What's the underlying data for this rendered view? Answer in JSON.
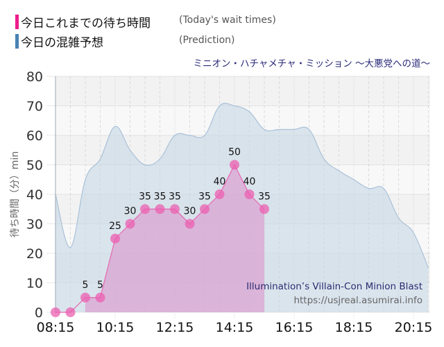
{
  "legend": {
    "items": [
      {
        "label_jp": "今日これまでの待ち時間",
        "label_en": "(Today's wait times)",
        "color": "#ec1c8c"
      },
      {
        "label_jp": "今日の混雑予想",
        "label_en": "(Prediction)",
        "color": "#4a82b4"
      }
    ]
  },
  "subtitle": "ミニオン・ハチャメチャ・ミッション ～大悪党への道～",
  "watermark": {
    "title": "Illumination’s Villain-Con Minion Blast",
    "url": "https://usjreal.asumirai.info"
  },
  "chart_data": {
    "type": "area",
    "title": "ミニオン・ハチャメチャ・ミッション ～大悪党への道～",
    "xlabel": "",
    "ylabel": "待ち時間（分）min",
    "ylim": [
      0,
      80
    ],
    "yticks": [
      0,
      10,
      20,
      30,
      40,
      50,
      60,
      70,
      80
    ],
    "xtick_labels": [
      "08:15",
      "10:15",
      "12:15",
      "14:15",
      "16:15",
      "18:15",
      "20:15"
    ],
    "grid": true,
    "legend_position": "top-left",
    "x": [
      "08:15",
      "08:45",
      "09:15",
      "09:45",
      "10:15",
      "10:45",
      "11:15",
      "11:45",
      "12:15",
      "12:45",
      "13:15",
      "13:45",
      "14:15",
      "14:45",
      "15:15",
      "15:45",
      "16:15",
      "16:45",
      "17:15",
      "17:45",
      "18:15",
      "18:45",
      "19:15",
      "19:45",
      "20:15",
      "20:45"
    ],
    "series": [
      {
        "name": "今日これまでの待ち時間 (Today's wait times)",
        "color": "#ec1c8c",
        "values": [
          0,
          0,
          5,
          5,
          25,
          30,
          35,
          35,
          35,
          30,
          35,
          40,
          50,
          40,
          35,
          null,
          null,
          null,
          null,
          null,
          null,
          null,
          null,
          null,
          null,
          null
        ]
      },
      {
        "name": "今日の混雑予想 (Prediction)",
        "color": "#4a82b4",
        "values": [
          40,
          22,
          45,
          52,
          63,
          55,
          50,
          52,
          60,
          60,
          60,
          70,
          70,
          68,
          62,
          62,
          62,
          62,
          52,
          48,
          45,
          42,
          42,
          32,
          27,
          15
        ]
      }
    ]
  }
}
